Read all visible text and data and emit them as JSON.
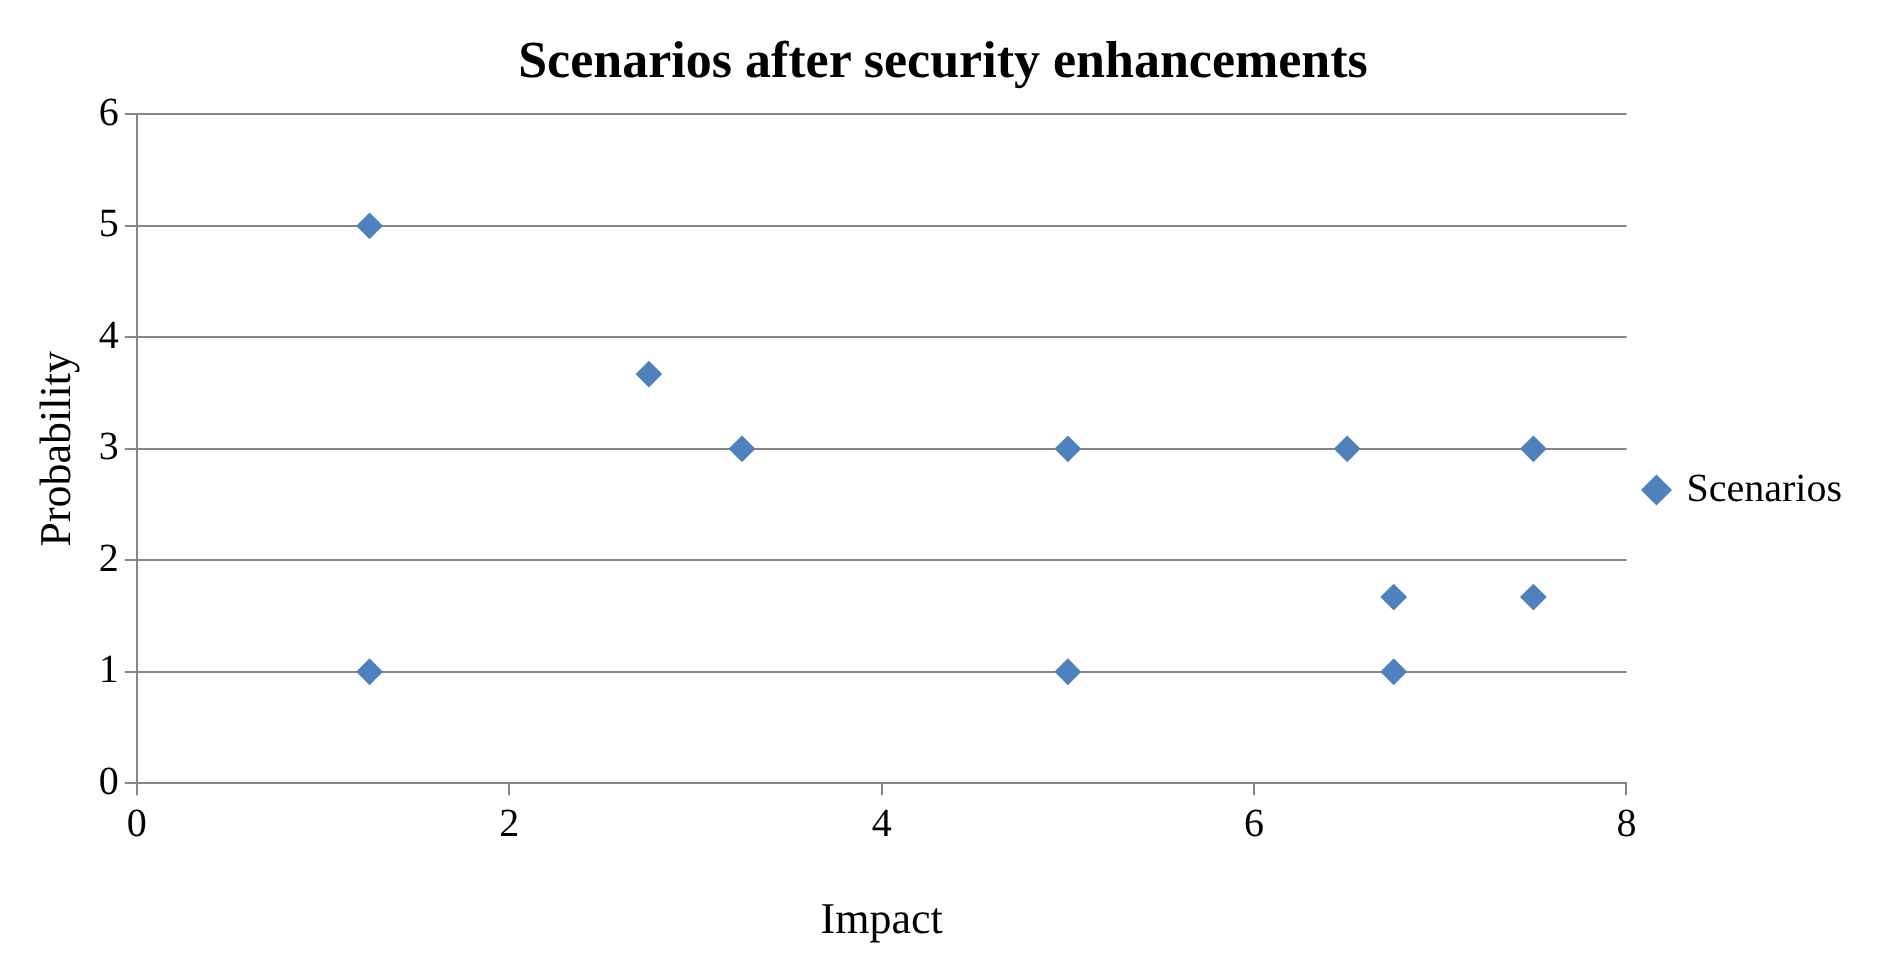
{
  "chart_data": {
    "type": "scatter",
    "title": "Scenarios after security enhancements",
    "xlabel": "Impact",
    "ylabel": "Probability",
    "series": [
      {
        "name": "Scenarios",
        "color": "#4f81bd",
        "x": [
          1.25,
          1.25,
          2.75,
          3.25,
          5,
          5,
          6.5,
          7.5,
          6.75,
          7.5,
          6.75
        ],
        "values": [
          5,
          1,
          3.67,
          3,
          3,
          1,
          3,
          3,
          1.67,
          1.67,
          1
        ]
      }
    ],
    "xlim": [
      0,
      8
    ],
    "xticks": [
      0,
      2,
      4,
      6,
      8
    ],
    "ylim": [
      0,
      6
    ],
    "yticks": [
      0,
      1,
      2,
      3,
      4,
      5,
      6
    ],
    "grid": "y",
    "legend": "right",
    "marker": "diamond"
  }
}
